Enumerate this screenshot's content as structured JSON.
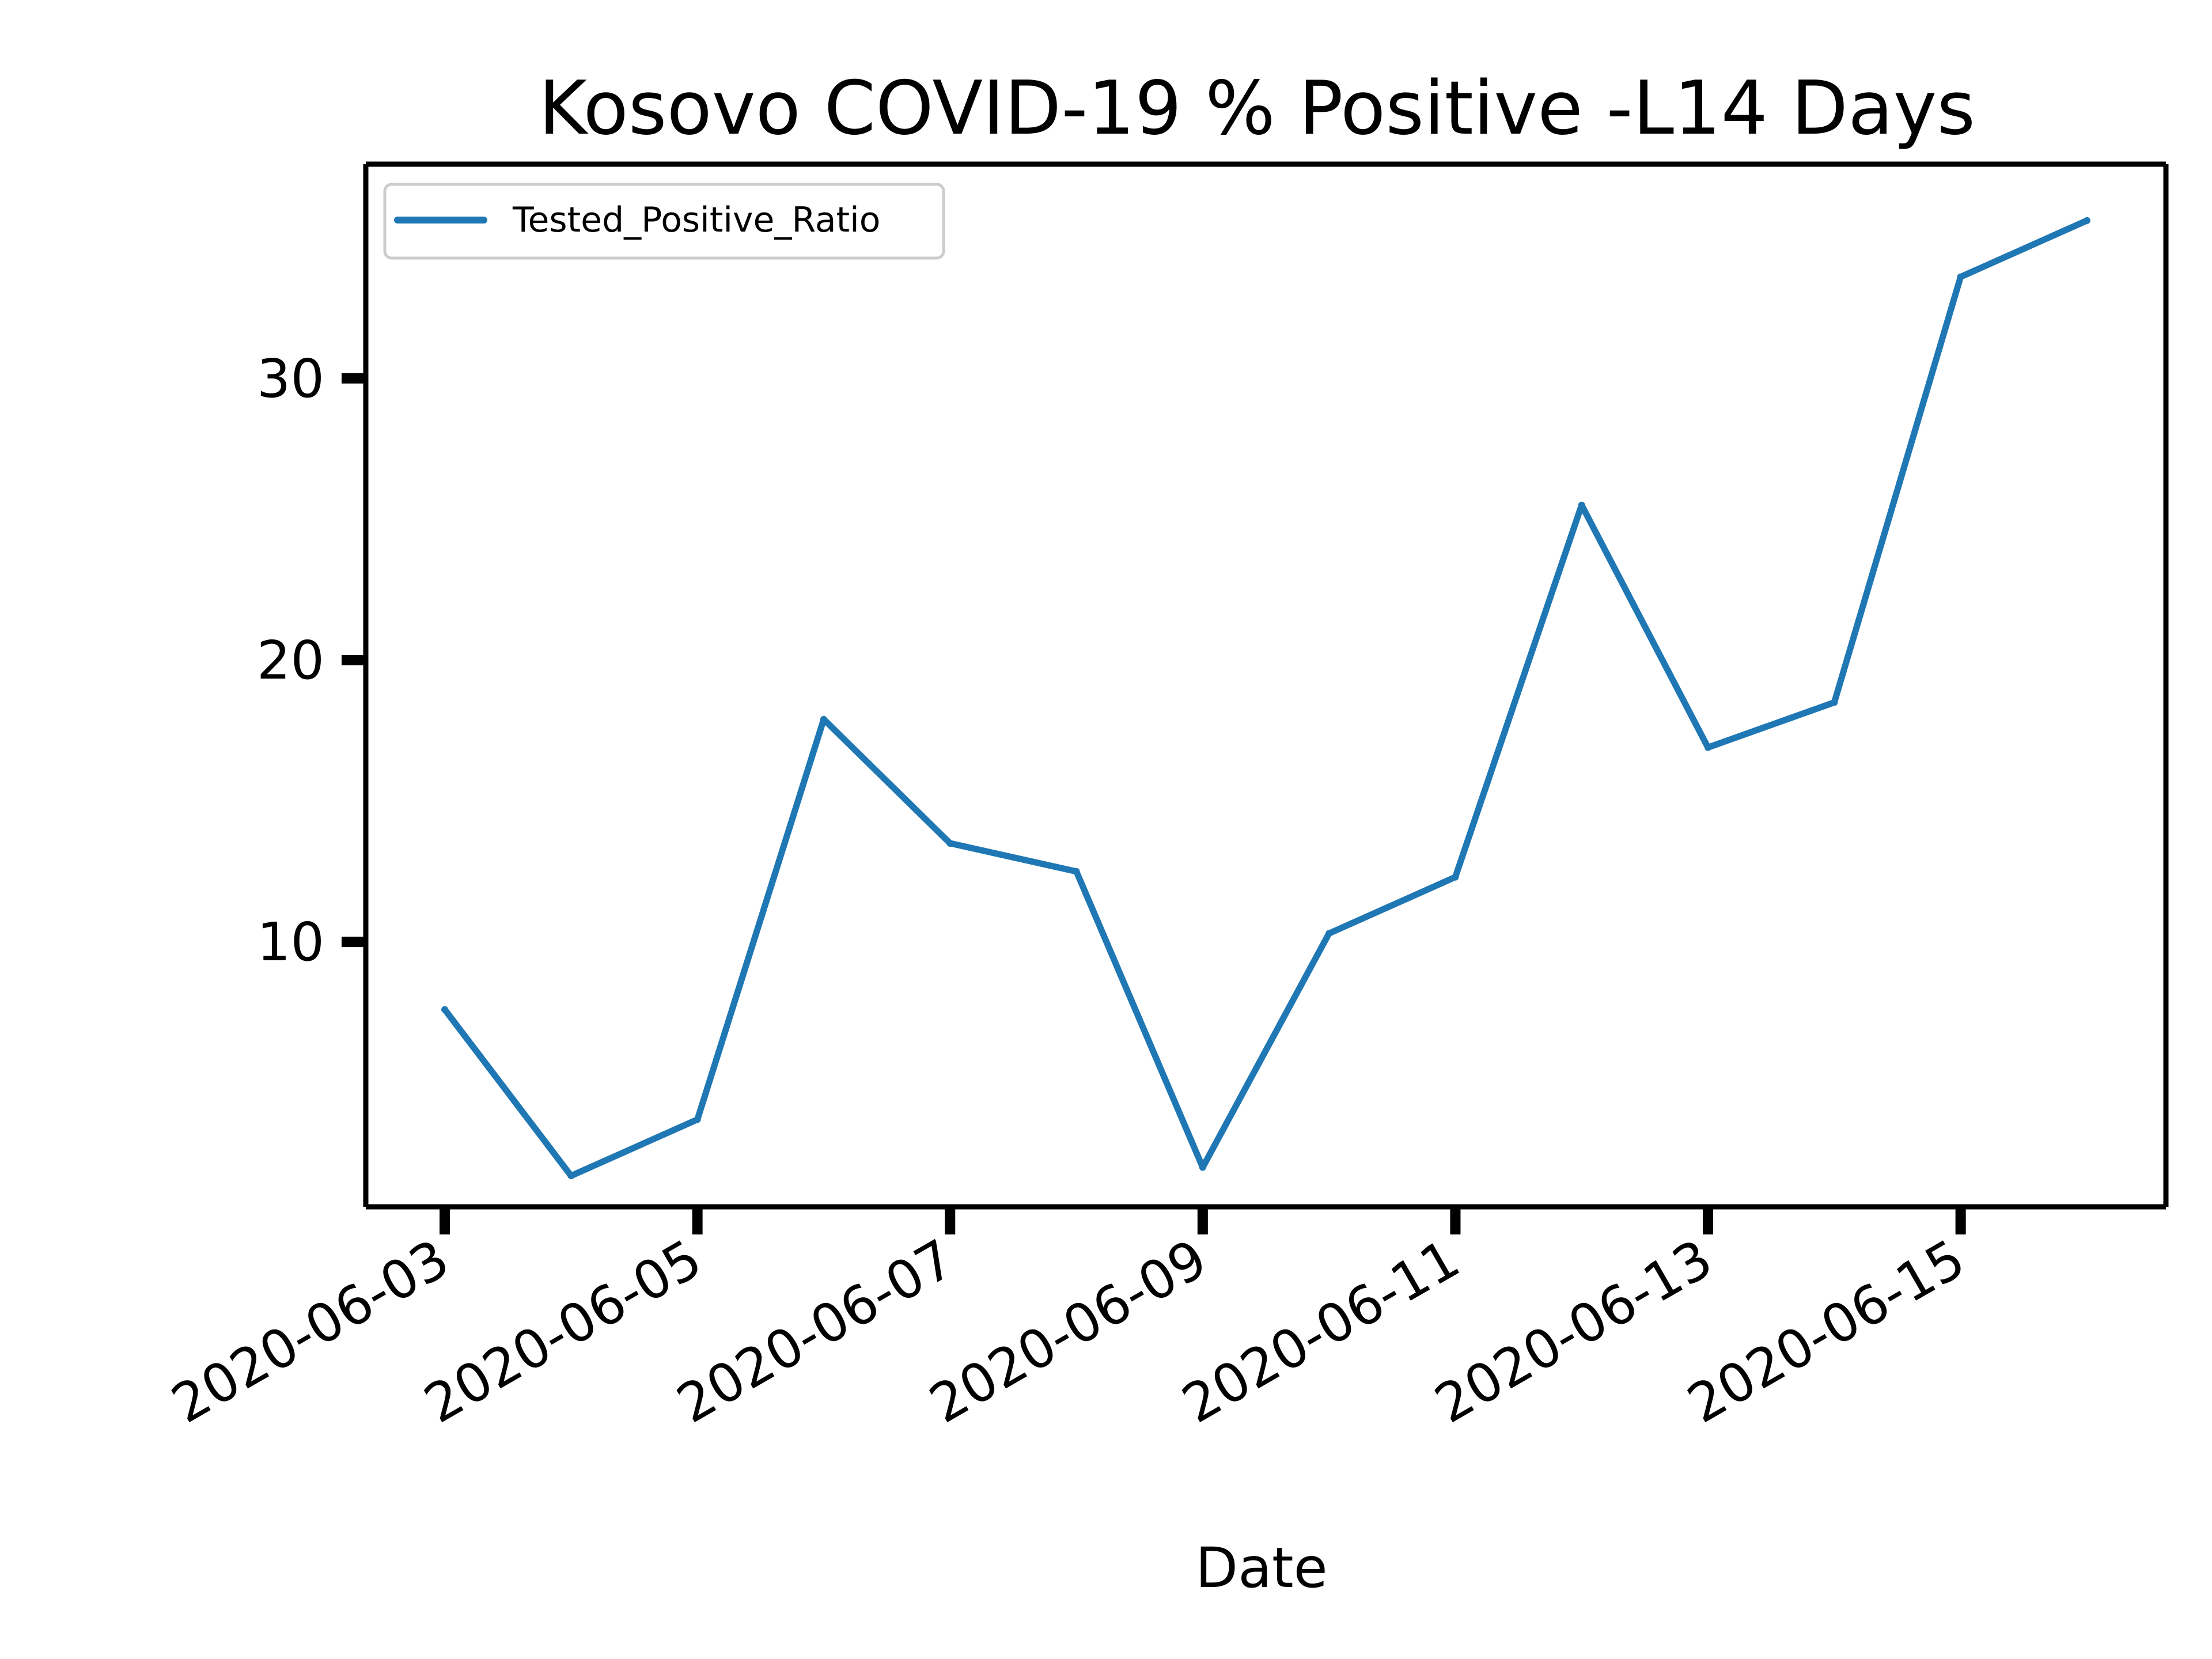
{
  "chart_data": {
    "type": "line",
    "title": "Kosovo COVID-19 % Positive -L14 Days",
    "xlabel": "Date",
    "ylabel": "",
    "x_ticks": [
      "2020-06-03",
      "2020-06-05",
      "2020-06-07",
      "2020-06-09",
      "2020-06-11",
      "2020-06-13",
      "2020-06-15"
    ],
    "y_ticks": [
      10,
      20,
      30
    ],
    "xlim": [
      "2020-06-02T09:00",
      "2020-06-16T15:00"
    ],
    "ylim": [
      0.6,
      37.6
    ],
    "grid": false,
    "legend_position": "top-left",
    "series": [
      {
        "name": "Tested_Positive_Ratio",
        "color": "#1f77b4",
        "x": [
          "2020-06-03",
          "2020-06-04",
          "2020-06-05",
          "2020-06-06",
          "2020-06-07",
          "2020-06-08",
          "2020-06-09",
          "2020-06-10",
          "2020-06-11",
          "2020-06-12",
          "2020-06-13",
          "2020-06-14",
          "2020-06-15",
          "2020-06-16"
        ],
        "values": [
          7.6,
          1.7,
          3.7,
          17.9,
          13.5,
          12.5,
          2.0,
          10.3,
          12.3,
          25.5,
          16.9,
          18.5,
          33.6,
          35.6
        ]
      }
    ]
  }
}
